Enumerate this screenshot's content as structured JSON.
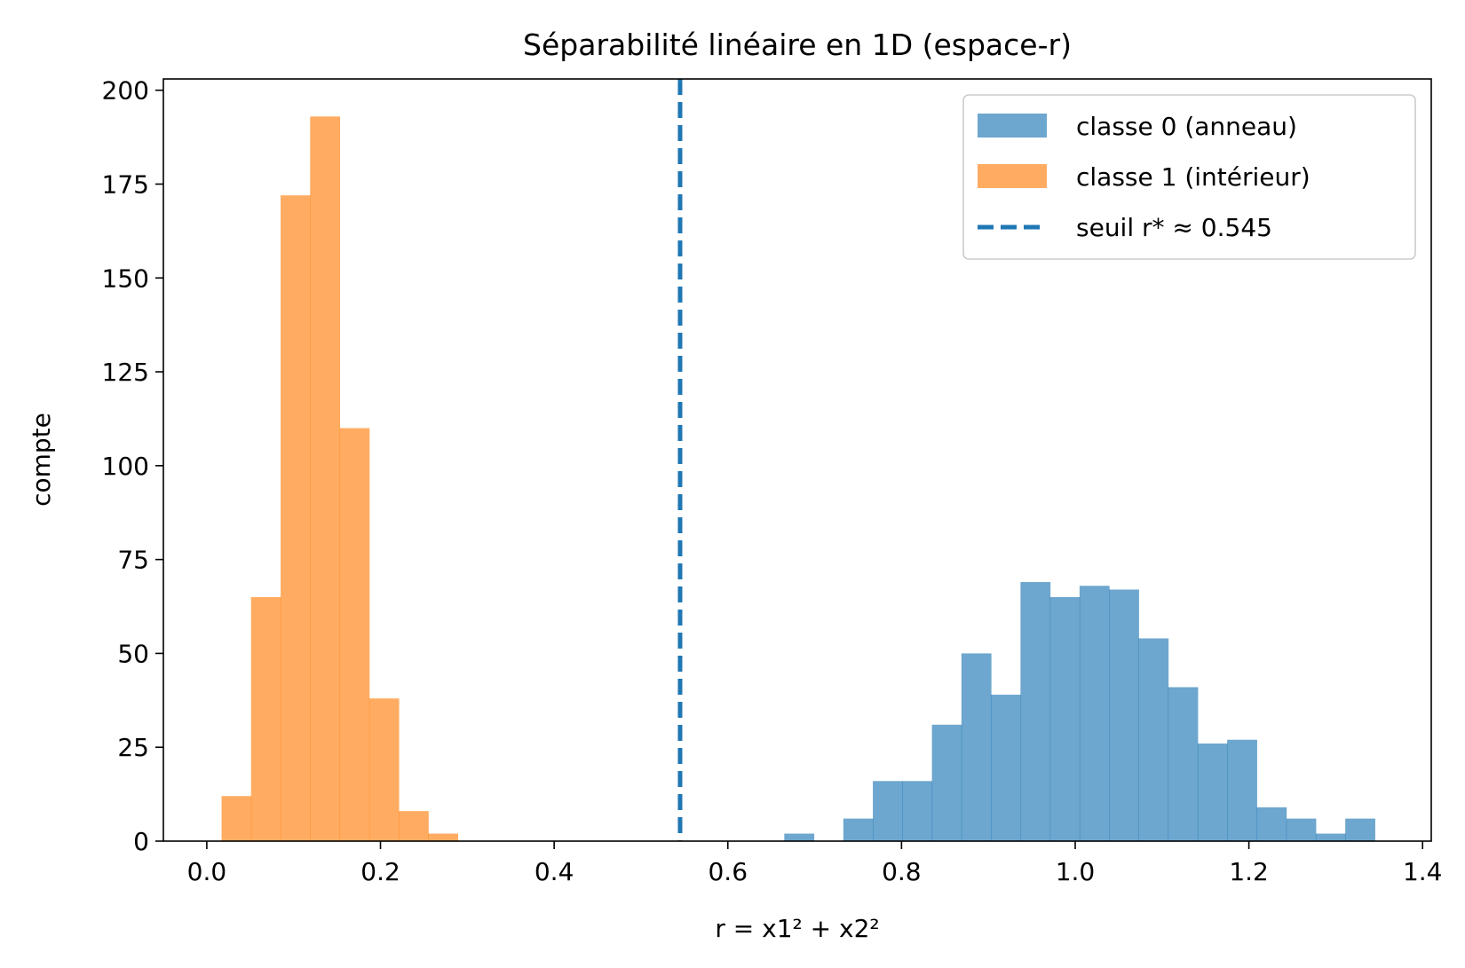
{
  "chart_data": {
    "type": "bar",
    "title": "Séparabilité linéaire en 1D (espace-r)",
    "xlabel": "r = x1² + x2²",
    "ylabel": "compte",
    "xlim": [
      -0.05,
      1.41
    ],
    "ylim": [
      0,
      203
    ],
    "xticks": [
      0.0,
      0.2,
      0.4,
      0.6,
      0.8,
      1.0,
      1.2,
      1.4
    ],
    "xtick_labels": [
      "0.0",
      "0.2",
      "0.4",
      "0.6",
      "0.8",
      "1.0",
      "1.2",
      "1.4"
    ],
    "yticks": [
      0,
      25,
      50,
      75,
      100,
      125,
      150,
      175,
      200
    ],
    "ytick_labels": [
      "0",
      "25",
      "50",
      "75",
      "100",
      "125",
      "150",
      "175",
      "200"
    ],
    "grid": false,
    "legend_position": "top-right",
    "series": [
      {
        "name": "classe 0 (anneau)",
        "color": "#1f77b4",
        "alpha": 0.65,
        "bin_edges": [
          0.665,
          0.699,
          0.733,
          0.767,
          0.801,
          0.835,
          0.869,
          0.903,
          0.937,
          0.971,
          1.005,
          1.039,
          1.073,
          1.107,
          1.141,
          1.175,
          1.209,
          1.243,
          1.277,
          1.311,
          1.345
        ],
        "counts": [
          2,
          0,
          6,
          16,
          16,
          31,
          50,
          39,
          69,
          65,
          68,
          67,
          54,
          41,
          26,
          27,
          9,
          6,
          2,
          6
        ]
      },
      {
        "name": "classe 1 (intérieur)",
        "color": "#ff7f0e",
        "alpha": 0.65,
        "bin_edges": [
          0.017,
          0.051,
          0.085,
          0.119,
          0.153,
          0.187,
          0.221,
          0.255,
          0.289
        ],
        "counts": [
          12,
          65,
          172,
          193,
          110,
          38,
          8,
          2
        ]
      }
    ],
    "threshold": {
      "name": "seuil r* ≈ 0.545",
      "value": 0.545,
      "color": "#1f77b4",
      "style": "dashed"
    }
  }
}
